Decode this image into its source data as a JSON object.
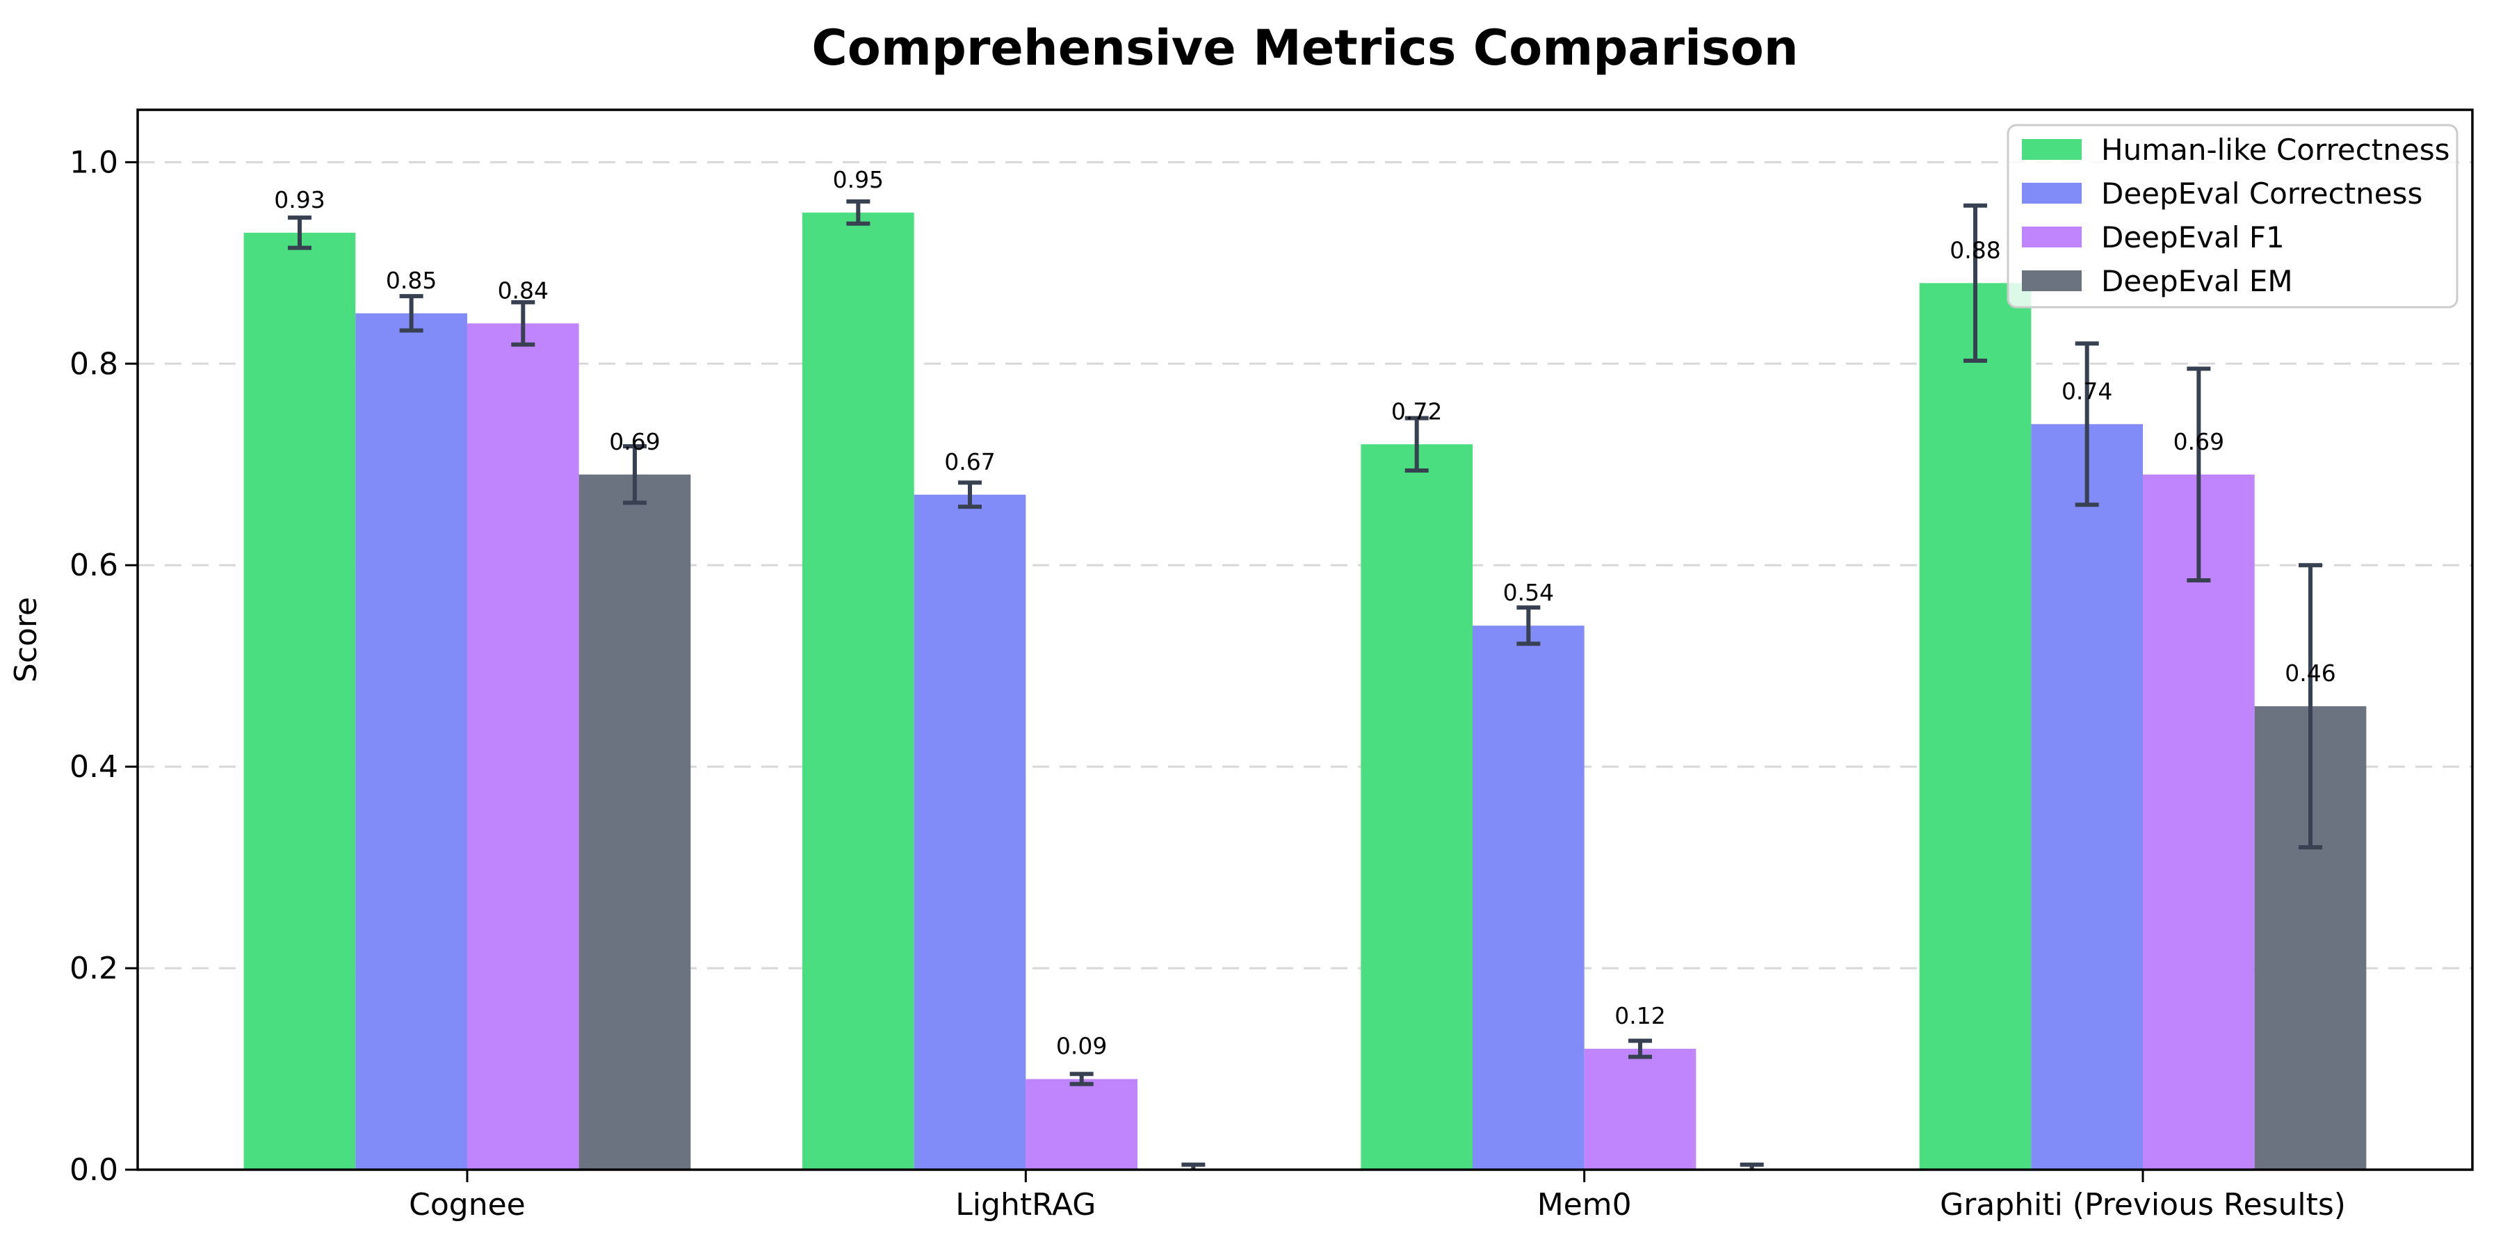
{
  "chart_data": {
    "type": "bar",
    "title": "Comprehensive Metrics Comparison",
    "ylabel": "Score",
    "xlabel": "",
    "categories": [
      "Cognee",
      "LightRAG",
      "Mem0",
      "Graphiti (Previous Results)"
    ],
    "ylim": [
      0,
      1.052
    ],
    "yticks": [
      0.0,
      0.2,
      0.4,
      0.6,
      0.8,
      1.0
    ],
    "grid": "horizontal-dashed",
    "legend_position": "upper-right",
    "bar_value_labels": true,
    "series": [
      {
        "name": "Human-like Correctness",
        "color": "#4ade80",
        "values": [
          0.93,
          0.95,
          0.72,
          0.88
        ],
        "errors": [
          0.015,
          0.011,
          0.026,
          0.077
        ],
        "labels": [
          "0.93",
          "0.95",
          "0.72",
          "0.88"
        ]
      },
      {
        "name": "DeepEval Correctness",
        "color": "#818cf8",
        "values": [
          0.85,
          0.67,
          0.54,
          0.74
        ],
        "errors": [
          0.017,
          0.012,
          0.018,
          0.08
        ],
        "labels": [
          "0.85",
          "0.67",
          "0.54",
          "0.74"
        ]
      },
      {
        "name": "DeepEval F1",
        "color": "#c084fc",
        "values": [
          0.84,
          0.09,
          0.12,
          0.69
        ],
        "errors": [
          0.021,
          0.005,
          0.008,
          0.105
        ],
        "labels": [
          "0.84",
          "0.09",
          "0.12",
          "0.69"
        ]
      },
      {
        "name": "DeepEval EM",
        "color": "#6b7280",
        "values": [
          0.69,
          0.0,
          0.0,
          0.46
        ],
        "errors": [
          0.028,
          0.005,
          0.005,
          0.14
        ],
        "labels": [
          "0.69",
          "",
          "",
          "0.46"
        ]
      }
    ],
    "colors": {
      "error_bar": "#374151",
      "grid": "#d8d8d8",
      "axis": "#000000",
      "legend_border": "#cccccc",
      "legend_bg": "rgba(255,255,255,0.8)",
      "text": "#000000"
    }
  }
}
